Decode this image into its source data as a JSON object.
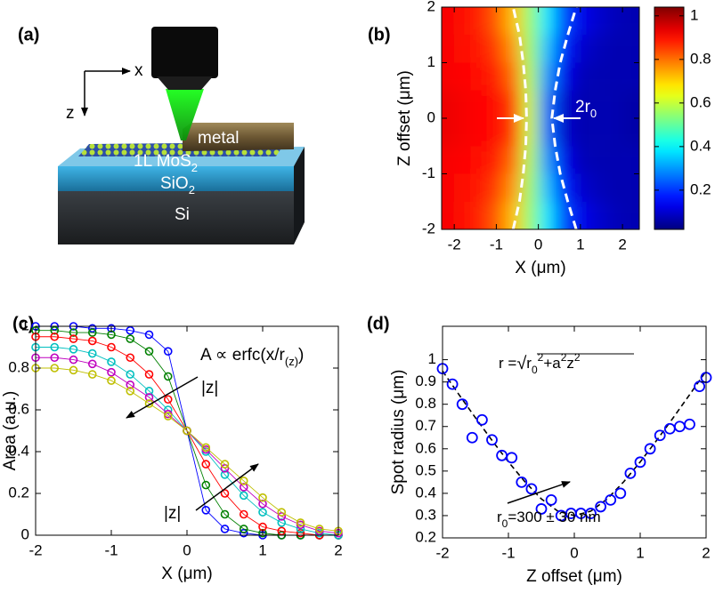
{
  "panel_labels": [
    "(a)",
    "(b)",
    "(c)",
    "(d)"
  ],
  "schematic": {
    "axis_x": "x",
    "axis_z": "z",
    "metal": "metal",
    "mos2": "1L MoS",
    "mos2_sub": "2",
    "sio2": "SiO",
    "sio2_sub": "2",
    "si": "Si"
  },
  "chart_data": [
    {
      "type": "heatmap",
      "xlabel": "X (μm)",
      "ylabel": "Z offset (μm)",
      "x": [
        -2.2,
        -1.8,
        -1.4,
        -1,
        -0.6,
        -0.2,
        0.2,
        0.6,
        1,
        1.4,
        1.8,
        2.2
      ],
      "y": [
        -1.75,
        -1.25,
        -0.75,
        -0.25,
        0.25,
        0.75,
        1.25,
        1.75
      ],
      "values": [
        [
          0.92,
          0.9,
          0.88,
          0.82,
          0.72,
          0.55,
          0.38,
          0.22,
          0.13,
          0.1,
          0.08,
          0.07
        ],
        [
          0.92,
          0.9,
          0.89,
          0.85,
          0.76,
          0.56,
          0.34,
          0.18,
          0.1,
          0.08,
          0.07,
          0.07
        ],
        [
          0.92,
          0.91,
          0.9,
          0.88,
          0.8,
          0.58,
          0.3,
          0.13,
          0.08,
          0.07,
          0.07,
          0.07
        ],
        [
          0.93,
          0.92,
          0.91,
          0.9,
          0.85,
          0.6,
          0.26,
          0.1,
          0.07,
          0.07,
          0.07,
          0.06
        ],
        [
          0.93,
          0.92,
          0.91,
          0.9,
          0.85,
          0.6,
          0.26,
          0.1,
          0.07,
          0.07,
          0.07,
          0.06
        ],
        [
          0.92,
          0.91,
          0.9,
          0.88,
          0.8,
          0.58,
          0.3,
          0.13,
          0.08,
          0.07,
          0.07,
          0.07
        ],
        [
          0.92,
          0.9,
          0.89,
          0.85,
          0.76,
          0.56,
          0.34,
          0.18,
          0.1,
          0.08,
          0.07,
          0.07
        ],
        [
          0.92,
          0.9,
          0.88,
          0.82,
          0.72,
          0.55,
          0.38,
          0.22,
          0.13,
          0.1,
          0.08,
          0.07
        ]
      ],
      "xlim": [
        -2.3,
        2.4
      ],
      "ylim": [
        -2,
        2
      ],
      "xticks": [
        -2,
        -1,
        0,
        1,
        2
      ],
      "yticks": [
        -2,
        -1,
        0,
        1,
        2
      ],
      "colormap": "jet",
      "clim": [
        0.02,
        1.04
      ],
      "cticks": [
        0.2,
        0.4,
        0.6,
        0.8,
        1
      ],
      "guides": [
        {
          "x": [
            -0.6,
            -0.45,
            -0.36,
            -0.3,
            -0.28,
            -0.3,
            -0.36,
            -0.45,
            -0.6
          ],
          "y": [
            -2,
            -1.5,
            -1,
            -0.5,
            0,
            0.5,
            1,
            1.5,
            2
          ]
        },
        {
          "x": [
            0.9,
            0.7,
            0.52,
            0.4,
            0.32,
            0.4,
            0.52,
            0.7,
            0.9
          ],
          "y": [
            -2,
            -1.5,
            -1,
            -0.5,
            0,
            0.5,
            1,
            1.5,
            2
          ]
        }
      ],
      "annotation": {
        "text": "2r",
        "sub": "0"
      }
    },
    {
      "type": "line",
      "xlabel": "X (μm)",
      "ylabel": "Area (a.u.)",
      "x": [
        -2,
        -1.75,
        -1.5,
        -1.25,
        -1,
        -0.75,
        -0.5,
        -0.25,
        0,
        0.25,
        0.5,
        0.75,
        1,
        1.25,
        1.5,
        1.75,
        2
      ],
      "series": [
        {
          "color": "#0000ff",
          "values": [
            1,
            1,
            1,
            0.99,
            0.99,
            0.98,
            0.96,
            0.88,
            0.5,
            0.12,
            0.03,
            0.01,
            0,
            0,
            0,
            0,
            0
          ]
        },
        {
          "color": "#008000",
          "values": [
            0.98,
            0.98,
            0.97,
            0.97,
            0.96,
            0.94,
            0.88,
            0.76,
            0.5,
            0.24,
            0.1,
            0.03,
            0.01,
            0,
            0,
            0,
            0
          ]
        },
        {
          "color": "#ff0000",
          "values": [
            0.95,
            0.95,
            0.94,
            0.93,
            0.9,
            0.85,
            0.77,
            0.65,
            0.5,
            0.34,
            0.2,
            0.1,
            0.04,
            0.02,
            0.01,
            0,
            0
          ]
        },
        {
          "color": "#00bfbf",
          "values": [
            0.9,
            0.9,
            0.89,
            0.87,
            0.83,
            0.77,
            0.69,
            0.6,
            0.5,
            0.4,
            0.29,
            0.19,
            0.11,
            0.06,
            0.03,
            0.01,
            0
          ]
        },
        {
          "color": "#bf00bf",
          "values": [
            0.85,
            0.85,
            0.84,
            0.82,
            0.78,
            0.72,
            0.66,
            0.58,
            0.5,
            0.41,
            0.32,
            0.23,
            0.15,
            0.09,
            0.05,
            0.02,
            0.01
          ]
        },
        {
          "color": "#bfbf00",
          "values": [
            0.8,
            0.8,
            0.79,
            0.77,
            0.74,
            0.69,
            0.63,
            0.57,
            0.5,
            0.42,
            0.34,
            0.26,
            0.18,
            0.11,
            0.06,
            0.03,
            0.02
          ]
        }
      ],
      "xlim": [
        -2,
        2
      ],
      "ylim": [
        0,
        1
      ],
      "xticks": [
        -2,
        -1,
        0,
        1,
        2
      ],
      "yticks": [
        0,
        0.2,
        0.4,
        0.6,
        0.8,
        1
      ],
      "annotation": {
        "formula": [
          "A ∝ erfc(x/r",
          "(z)",
          ")"
        ],
        "direction": "|z|"
      }
    },
    {
      "type": "scatter",
      "xlabel": "Z offset (μm)",
      "ylabel": "Spot radius (μm)",
      "color": "#0000ff",
      "x": [
        -2,
        -1.85,
        -1.7,
        -1.55,
        -1.4,
        -1.25,
        -1.1,
        -0.95,
        -0.8,
        -0.65,
        -0.5,
        -0.35,
        -0.2,
        -0.05,
        0.1,
        0.25,
        0.4,
        0.55,
        0.7,
        0.85,
        1,
        1.15,
        1.3,
        1.45,
        1.6,
        1.75,
        1.9,
        2
      ],
      "values": [
        0.96,
        0.89,
        0.8,
        0.65,
        0.73,
        0.64,
        0.57,
        0.56,
        0.45,
        0.42,
        0.33,
        0.37,
        0.3,
        0.31,
        0.31,
        0.31,
        0.34,
        0.37,
        0.4,
        0.49,
        0.54,
        0.6,
        0.66,
        0.69,
        0.7,
        0.71,
        0.88,
        0.92
      ],
      "fit": {
        "x": [
          -2,
          -1.75,
          -1.5,
          -1.25,
          -1,
          -0.75,
          -0.5,
          -0.25,
          0,
          0.25,
          0.5,
          0.75,
          1,
          1.25,
          1.5,
          1.75,
          2
        ],
        "values": [
          0.949,
          0.843,
          0.739,
          0.638,
          0.541,
          0.452,
          0.375,
          0.32,
          0.3,
          0.32,
          0.375,
          0.452,
          0.541,
          0.638,
          0.739,
          0.843,
          0.949
        ]
      },
      "xlim": [
        -2,
        2
      ],
      "ylim": [
        0.2,
        1.15
      ],
      "xticks": [
        -2,
        -1,
        0,
        1,
        2
      ],
      "yticks": [
        0.2,
        0.3,
        0.4,
        0.5,
        0.6,
        0.7,
        0.8,
        0.9,
        1
      ],
      "annotation": {
        "formula": [
          "r =",
          "√",
          "r",
          "0",
          "2",
          "+a",
          "2",
          "z",
          "2"
        ],
        "result": [
          "r",
          "0",
          "=300 ± 30 nm"
        ]
      }
    }
  ]
}
